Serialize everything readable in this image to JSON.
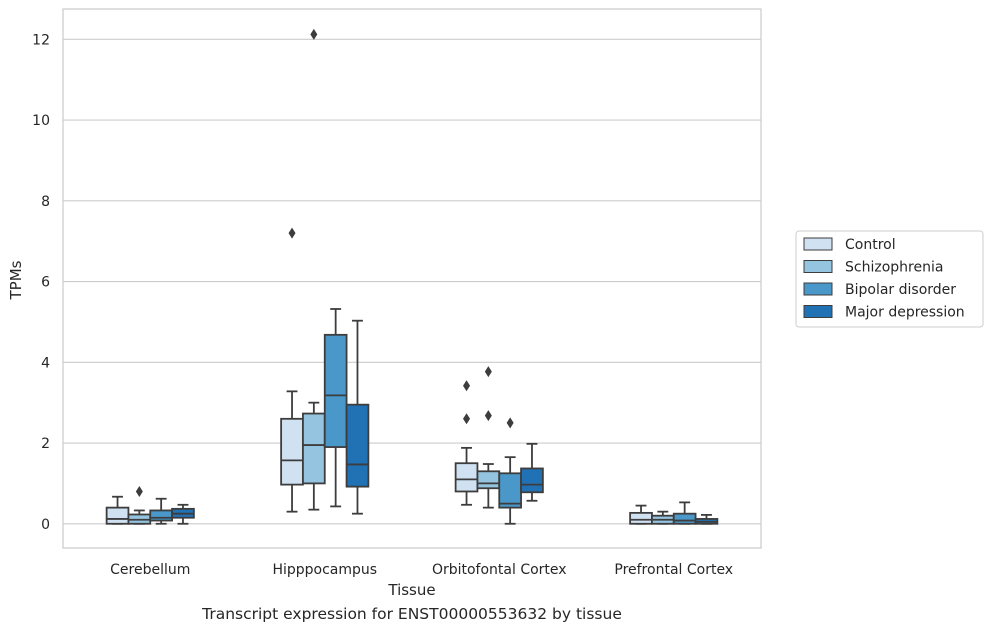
{
  "caption": "Transcript expression for ENST00000553632 by tissue",
  "chart_data": {
    "type": "box",
    "xlabel": "Tissue",
    "ylabel": "TPMs",
    "ylim": [
      -0.6,
      12.75
    ],
    "yticks": [
      0,
      2,
      4,
      6,
      8,
      10,
      12
    ],
    "grid": true,
    "legend_position": "right",
    "categories": [
      "Cerebellum",
      "Hipppocampus",
      "Orbitofontal Cortex",
      "Prefrontal Cortex"
    ],
    "series": [
      {
        "name": "Control",
        "color": "#d0e1f2",
        "boxes": [
          {
            "whislo": 0.0,
            "q1": 0.0,
            "med": 0.12,
            "q3": 0.4,
            "whishi": 0.67,
            "fliers": []
          },
          {
            "whislo": 0.3,
            "q1": 0.97,
            "med": 1.57,
            "q3": 2.6,
            "whishi": 3.28,
            "fliers": [
              7.2
            ]
          },
          {
            "whislo": 0.47,
            "q1": 0.8,
            "med": 1.1,
            "q3": 1.5,
            "whishi": 1.88,
            "fliers": [
              2.6,
              3.42
            ]
          },
          {
            "whislo": 0.0,
            "q1": 0.0,
            "med": 0.1,
            "q3": 0.27,
            "whishi": 0.45,
            "fliers": []
          }
        ]
      },
      {
        "name": "Schizophrenia",
        "color": "#94c4df",
        "boxes": [
          {
            "whislo": 0.0,
            "q1": 0.0,
            "med": 0.1,
            "q3": 0.23,
            "whishi": 0.33,
            "fliers": [
              0.8
            ]
          },
          {
            "whislo": 0.35,
            "q1": 1.0,
            "med": 1.95,
            "q3": 2.73,
            "whishi": 3.0,
            "fliers": [
              12.12
            ]
          },
          {
            "whislo": 0.4,
            "q1": 0.88,
            "med": 1.0,
            "q3": 1.3,
            "whishi": 1.48,
            "fliers": [
              2.68,
              3.77
            ]
          },
          {
            "whislo": 0.0,
            "q1": 0.0,
            "med": 0.1,
            "q3": 0.2,
            "whishi": 0.3,
            "fliers": []
          }
        ]
      },
      {
        "name": "Bipolar disorder",
        "color": "#4a98c9",
        "boxes": [
          {
            "whislo": 0.0,
            "q1": 0.08,
            "med": 0.15,
            "q3": 0.33,
            "whishi": 0.62,
            "fliers": []
          },
          {
            "whislo": 0.43,
            "q1": 1.9,
            "med": 3.18,
            "q3": 4.68,
            "whishi": 5.32,
            "fliers": []
          },
          {
            "whislo": 0.0,
            "q1": 0.4,
            "med": 0.5,
            "q3": 1.25,
            "whishi": 1.65,
            "fliers": [
              2.5
            ]
          },
          {
            "whislo": 0.0,
            "q1": 0.0,
            "med": 0.08,
            "q3": 0.25,
            "whishi": 0.53,
            "fliers": []
          }
        ]
      },
      {
        "name": "Major depression",
        "color": "#2171b5",
        "boxes": [
          {
            "whislo": 0.0,
            "q1": 0.15,
            "med": 0.25,
            "q3": 0.37,
            "whishi": 0.47,
            "fliers": []
          },
          {
            "whislo": 0.25,
            "q1": 0.92,
            "med": 1.47,
            "q3": 2.95,
            "whishi": 5.03,
            "fliers": []
          },
          {
            "whislo": 0.57,
            "q1": 0.78,
            "med": 0.97,
            "q3": 1.37,
            "whishi": 1.98,
            "fliers": []
          },
          {
            "whislo": 0.0,
            "q1": 0.0,
            "med": 0.05,
            "q3": 0.12,
            "whishi": 0.22,
            "fliers": []
          }
        ]
      }
    ]
  }
}
